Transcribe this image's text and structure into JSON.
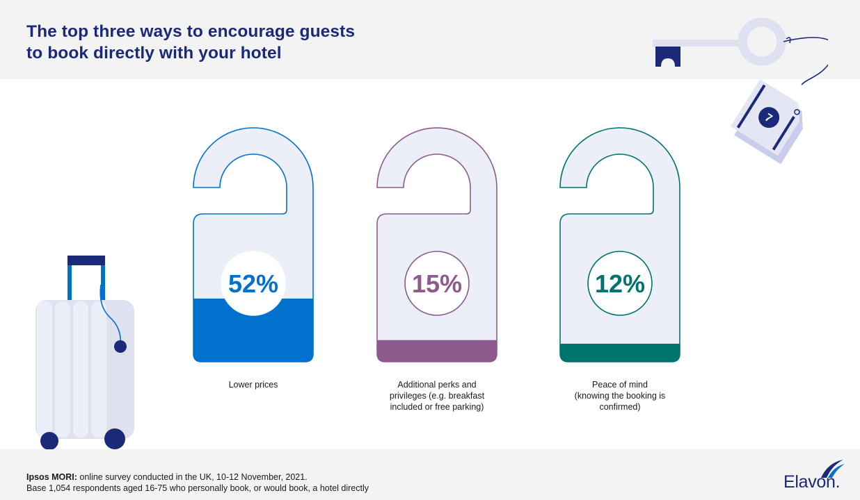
{
  "header": {
    "title_line1": "The top three ways to encourage guests",
    "title_line2": "to book directly with your hotel"
  },
  "chart_data": {
    "type": "bar",
    "title": "The top three ways to encourage guests to book directly with your hotel",
    "categories": [
      "Lower prices",
      "Additional perks and privileges (e.g. breakfast included or free parking)",
      "Peace of mind (knowing the booking is confirmed)"
    ],
    "values": [
      52,
      15,
      12
    ],
    "unit": "%",
    "value_labels": [
      "52%",
      "15%",
      "12%"
    ],
    "ylim": [
      0,
      100
    ],
    "label_lines": [
      [
        "Lower prices"
      ],
      [
        "Additional perks and",
        "privileges (e.g. breakfast",
        "included or free parking)"
      ],
      [
        "Peace of mind",
        "(knowing the booking is",
        "confirmed)"
      ]
    ],
    "colors": [
      "#0072ce",
      "#8e5a8e",
      "#00736e"
    ]
  },
  "footer": {
    "source_label": "Ipsos MORI:",
    "source_text": " online survey conducted in the UK, 10-12 November, 2021.",
    "base_text": "Base 1,054 respondents aged 16-75 who personally book, or would book, a hotel directly"
  },
  "logo": {
    "text": "Elavon."
  },
  "key_tag": {
    "number": "7"
  },
  "colors": {
    "navy": "#1a2a78",
    "lavender": "#dfe1f1",
    "hanger_fill": "#eceef8"
  }
}
